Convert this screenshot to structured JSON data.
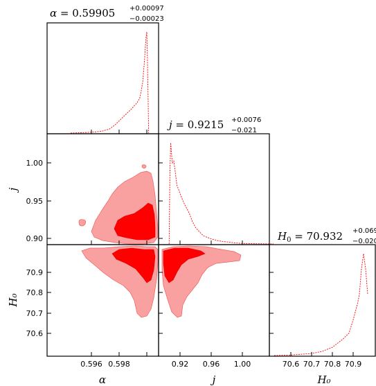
{
  "chart_data": {
    "type": "corner",
    "parameters": [
      {
        "symbol": "α",
        "xlabel": "α",
        "title_value": "0.59905",
        "err_plus": "+0.00097",
        "err_minus": "−0.00023"
      },
      {
        "symbol": "j",
        "xlabel": "j",
        "ylabel": "j",
        "title_value": "0.9215",
        "err_plus": "+0.0076",
        "err_minus": "−0.021"
      },
      {
        "symbol": "H0",
        "xlabel": "H₀",
        "ylabel": "H₀",
        "title_value": "70.932",
        "err_plus": "+0.069",
        "err_minus": "−0.020"
      }
    ],
    "ticks": {
      "alpha_x": [
        "0.596",
        "0.598"
      ],
      "j_x": [
        "0.92",
        "0.96",
        "1.00"
      ],
      "H0_x": [
        "70.6",
        "70.7",
        "70.8",
        "70.9"
      ],
      "j_y": [
        "1.00",
        "0.95",
        "0.90"
      ],
      "H0_y": [
        "70.9",
        "70.8",
        "70.7",
        "70.6"
      ]
    },
    "marginals": {
      "alpha": {
        "x": [
          0.5945,
          0.5955,
          0.5962,
          0.5968,
          0.5973,
          0.5977,
          0.598,
          0.5983,
          0.5986,
          0.5989,
          0.5991,
          0.5993,
          0.5995,
          0.5996,
          0.5997,
          0.59975,
          0.5998,
          0.59985,
          0.5999,
          0.59995,
          0.6,
          0.60005,
          0.6001,
          0.60013
        ],
        "y": [
          0,
          0.005,
          0.01,
          0.02,
          0.04,
          0.08,
          0.12,
          0.16,
          0.2,
          0.24,
          0.27,
          0.3,
          0.35,
          0.42,
          0.5,
          0.58,
          0.66,
          0.75,
          0.86,
          0.95,
          1.0,
          0.7,
          0.3,
          0.0
        ]
      },
      "j": {
        "x": [
          0.906,
          0.907,
          0.908,
          0.91,
          0.912,
          0.914,
          0.916,
          0.918,
          0.92,
          0.924,
          0.928,
          0.932,
          0.936,
          0.94,
          0.945,
          0.95,
          0.96,
          0.97,
          0.98,
          0.99,
          1.0,
          1.02,
          1.04
        ],
        "y": [
          0.0,
          0.7,
          1.0,
          0.8,
          0.82,
          0.7,
          0.58,
          0.54,
          0.5,
          0.42,
          0.36,
          0.3,
          0.22,
          0.16,
          0.12,
          0.08,
          0.05,
          0.03,
          0.02,
          0.01,
          0.005,
          0.002,
          0.0
        ]
      },
      "H0": {
        "x": [
          70.52,
          70.6,
          70.7,
          70.75,
          70.8,
          70.85,
          70.88,
          70.9,
          70.92,
          70.93,
          70.94,
          70.95,
          70.96,
          70.97
        ],
        "y": [
          0.0,
          0.005,
          0.02,
          0.04,
          0.08,
          0.16,
          0.22,
          0.35,
          0.5,
          0.6,
          0.85,
          1.0,
          0.85,
          0.6
        ]
      }
    },
    "colors": {
      "outer": "#f9a0a0",
      "inner": "#ff0000",
      "edge": "#f06060",
      "line": "#ff0000",
      "axis": "#000000"
    }
  }
}
